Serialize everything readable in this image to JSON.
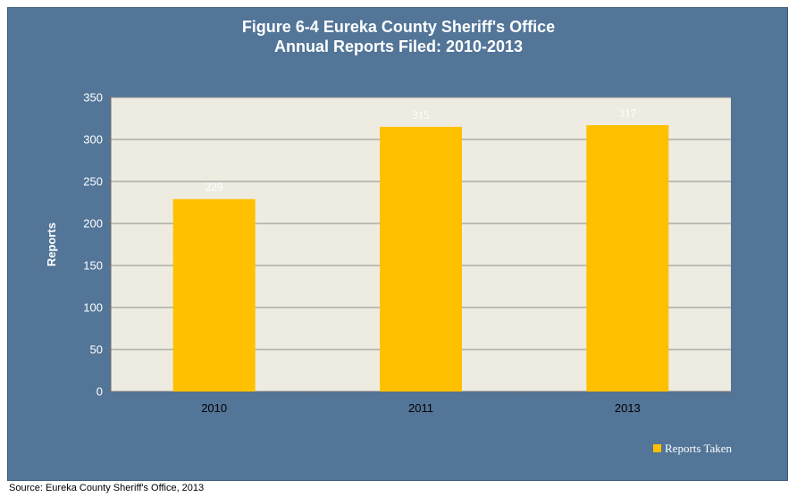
{
  "chart_data": {
    "type": "bar",
    "title": "Figure 6-4 Eureka County Sheriff's Office",
    "subtitle": "Annual Reports Filed: 2010-2013",
    "categories": [
      "2010",
      "2011",
      "2013"
    ],
    "series": [
      {
        "name": "Reports Taken",
        "values": [
          229,
          315,
          317
        ],
        "color": "#ffc000"
      }
    ],
    "ylabel": "Reports",
    "xlabel": "",
    "ylim": [
      0,
      350
    ],
    "yticks": [
      "0",
      "50",
      "100",
      "150",
      "200",
      "250",
      "300",
      "350"
    ],
    "grid": true,
    "legend_position": "bottom-right",
    "plot_background": "#eeece1",
    "frame_background": "#527598"
  },
  "source": "Source: Eureka County Sheriff's Office, 2013"
}
